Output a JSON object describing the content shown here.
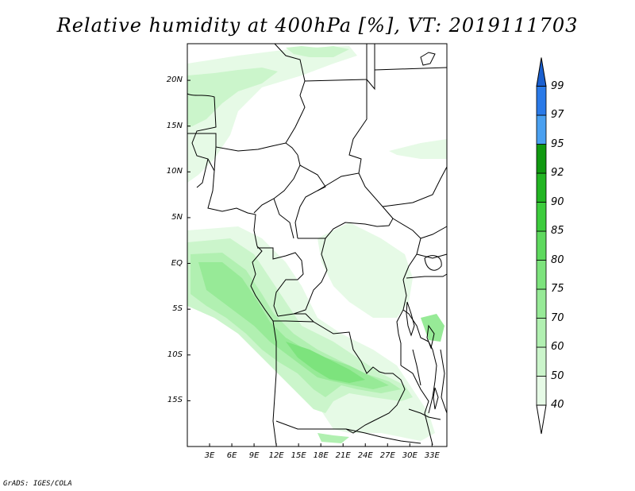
{
  "title": "Relative humidity at 400hPa [%], VT: 2019111703",
  "credit": "GrADS: IGES/COLA",
  "map": {
    "lon_range": [
      0,
      35
    ],
    "lat_range": [
      -20,
      24
    ],
    "lat_ticks": [
      {
        "value": 20,
        "label": "20N"
      },
      {
        "value": 15,
        "label": "15N"
      },
      {
        "value": 10,
        "label": "10N"
      },
      {
        "value": 5,
        "label": "5N"
      },
      {
        "value": 0,
        "label": "EQ"
      },
      {
        "value": -5,
        "label": "5S"
      },
      {
        "value": -10,
        "label": "10S"
      },
      {
        "value": -15,
        "label": "15S"
      }
    ],
    "lon_ticks": [
      {
        "value": 3,
        "label": "3E"
      },
      {
        "value": 6,
        "label": "6E"
      },
      {
        "value": 9,
        "label": "9E"
      },
      {
        "value": 12,
        "label": "12E"
      },
      {
        "value": 15,
        "label": "15E"
      },
      {
        "value": 18,
        "label": "18E"
      },
      {
        "value": 21,
        "label": "21E"
      },
      {
        "value": 24,
        "label": "24E"
      },
      {
        "value": 27,
        "label": "27E"
      },
      {
        "value": 30,
        "label": "30E"
      },
      {
        "value": 33,
        "label": "33E"
      }
    ]
  },
  "colorbar": {
    "levels": [
      "99",
      "97",
      "95",
      "92",
      "90",
      "85",
      "80",
      "75",
      "70",
      "60",
      "50",
      "40"
    ],
    "colors": [
      "#e6fae6",
      "#cbf5cb",
      "#b1f0b1",
      "#97ea97",
      "#7de37d",
      "#5ed95e",
      "#3dcc3d",
      "#22b522",
      "#109910",
      "#4aa0f0",
      "#2a7ae8",
      "#1a5fcf"
    ]
  }
}
